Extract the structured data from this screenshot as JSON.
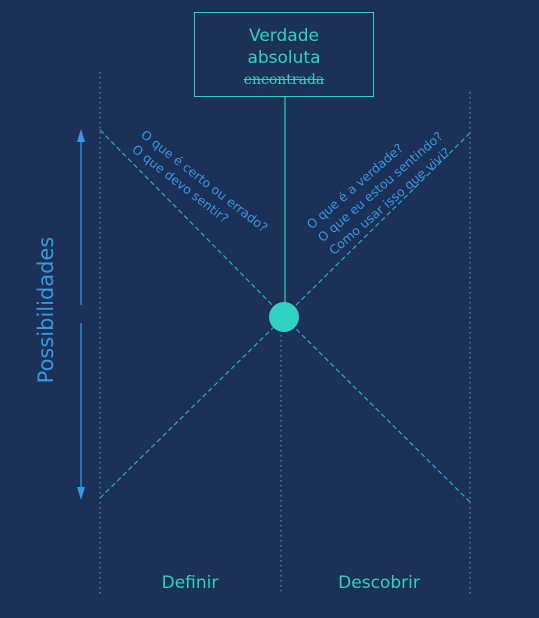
{
  "top_box": {
    "line1": "Verdade",
    "line2": "absoluta",
    "line3_struck": "encontrada"
  },
  "y_axis_label": "Possibilidades",
  "left_questions": [
    "O que é certo ou errado?",
    "O que devo sentir?"
  ],
  "right_questions": [
    "O que é a verdade?",
    "O que eu estou sentindo?",
    "Como usar isso que vivi?"
  ],
  "bottom_labels": {
    "left": "Definir",
    "right": "Descobrir"
  },
  "colors": {
    "background": "#1b3157",
    "teal": "#2ed3c2",
    "blue": "#3b97e0"
  }
}
